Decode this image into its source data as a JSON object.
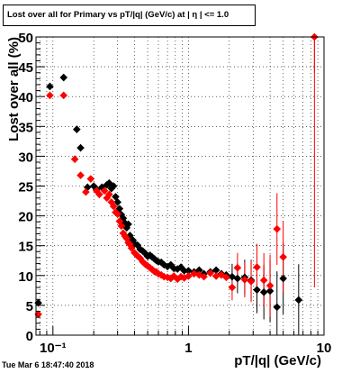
{
  "chart_data": {
    "type": "scatter",
    "title": "Lost over all for Primary vs pT/|q| (GeV/c) at | η | <= 1.0",
    "xlabel": "pT/|q| (GeV/c)",
    "ylabel": "Lost over all (%)",
    "x_scale": "log",
    "xlim": [
      0.075,
      10
    ],
    "ylim": [
      0,
      50
    ],
    "x_tick_labels": [
      "10⁻¹",
      "1",
      "10"
    ],
    "y_tick_labels": [
      "0",
      "5",
      "10",
      "15",
      "20",
      "25",
      "30",
      "35",
      "40",
      "45",
      "50"
    ],
    "grid": true,
    "timestamp": "Tue Mar  6 18:47:40 2018",
    "series": [
      {
        "color": "#000000",
        "marker": "diamond",
        "points": [
          [
            0.078,
            5.4
          ],
          [
            0.095,
            41.7
          ],
          [
            0.12,
            43.2
          ],
          [
            0.15,
            34.5
          ],
          [
            0.16,
            31.4
          ],
          [
            0.18,
            24.8
          ],
          [
            0.2,
            25
          ],
          [
            0.21,
            24.4
          ],
          [
            0.23,
            24.8
          ],
          [
            0.25,
            25.2
          ],
          [
            0.26,
            25.5
          ],
          [
            0.27,
            24.6
          ],
          [
            0.28,
            25
          ],
          [
            0.29,
            23.2
          ],
          [
            0.3,
            22.3
          ],
          [
            0.31,
            21.2
          ],
          [
            0.32,
            20.2
          ],
          [
            0.33,
            19.6
          ],
          [
            0.34,
            18.8
          ],
          [
            0.35,
            18
          ],
          [
            0.36,
            18.6
          ],
          [
            0.37,
            16.7
          ],
          [
            0.38,
            16.1
          ],
          [
            0.39,
            15.9
          ],
          [
            0.4,
            15.3
          ],
          [
            0.42,
            15.1
          ],
          [
            0.44,
            14.4
          ],
          [
            0.46,
            14.1
          ],
          [
            0.48,
            13.7
          ],
          [
            0.5,
            13.2
          ],
          [
            0.52,
            13.4
          ],
          [
            0.54,
            13.1
          ],
          [
            0.56,
            12.8
          ],
          [
            0.58,
            12.5
          ],
          [
            0.6,
            12.3
          ],
          [
            0.63,
            12.2
          ],
          [
            0.66,
            11.8
          ],
          [
            0.7,
            11.5
          ],
          [
            0.74,
            11.8
          ],
          [
            0.78,
            11.2
          ],
          [
            0.83,
            11.1
          ],
          [
            0.88,
            11.4
          ],
          [
            0.93,
            10.8
          ],
          [
            1.0,
            10.8
          ],
          [
            1.1,
            10.6
          ],
          [
            1.2,
            10.9
          ],
          [
            1.3,
            10.3
          ],
          [
            1.45,
            10.6
          ],
          [
            1.6,
            10.9
          ],
          [
            1.75,
            10.3
          ],
          [
            1.9,
            10.1
          ],
          [
            2.1,
            9.8
          ],
          [
            2.3,
            9.5
          ],
          [
            2.6,
            9.7
          ],
          [
            2.9,
            9.2
          ],
          [
            3.2,
            7.6
          ],
          [
            3.6,
            7.2
          ],
          [
            4.0,
            7.4
          ],
          [
            4.5,
            4.7
          ],
          [
            5.0,
            9.5
          ],
          [
            6.5,
            5.9
          ]
        ]
      },
      {
        "color": "#ff0000",
        "marker": "diamond",
        "points": [
          [
            0.078,
            3.5
          ],
          [
            0.095,
            40.2
          ],
          [
            0.12,
            40.2
          ],
          [
            0.145,
            29.5
          ],
          [
            0.16,
            26.8
          ],
          [
            0.175,
            24
          ],
          [
            0.19,
            26.2
          ],
          [
            0.21,
            24.2
          ],
          [
            0.22,
            23.6
          ],
          [
            0.24,
            24.2
          ],
          [
            0.25,
            23
          ],
          [
            0.26,
            23.6
          ],
          [
            0.27,
            22.3
          ],
          [
            0.28,
            21.6
          ],
          [
            0.29,
            20.6
          ],
          [
            0.3,
            20.3
          ],
          [
            0.31,
            19.1
          ],
          [
            0.32,
            18.3
          ],
          [
            0.33,
            17.1
          ],
          [
            0.34,
            16.6
          ],
          [
            0.35,
            16.2
          ],
          [
            0.36,
            15.5
          ],
          [
            0.37,
            15.2
          ],
          [
            0.38,
            14.6
          ],
          [
            0.4,
            13.8
          ],
          [
            0.42,
            13.3
          ],
          [
            0.44,
            12.9
          ],
          [
            0.46,
            12.3
          ],
          [
            0.48,
            11.9
          ],
          [
            0.5,
            11.6
          ],
          [
            0.52,
            11.3
          ],
          [
            0.54,
            11
          ],
          [
            0.56,
            10.7
          ],
          [
            0.58,
            10.6
          ],
          [
            0.6,
            10.3
          ],
          [
            0.63,
            10.1
          ],
          [
            0.66,
            9.8
          ],
          [
            0.7,
            9.7
          ],
          [
            0.74,
            9.5
          ],
          [
            0.78,
            9.9
          ],
          [
            0.83,
            9.4
          ],
          [
            0.88,
            9.8
          ],
          [
            0.93,
            9.6
          ],
          [
            1.0,
            9.9
          ],
          [
            1.1,
            10.3
          ],
          [
            1.2,
            10.1
          ],
          [
            1.3,
            9.8
          ],
          [
            1.45,
            10.4
          ],
          [
            1.6,
            9.9
          ],
          [
            1.75,
            10.1
          ],
          [
            1.9,
            9.7
          ],
          [
            2.1,
            8
          ],
          [
            2.3,
            11.3
          ],
          [
            2.6,
            9.3
          ],
          [
            2.9,
            9.0
          ],
          [
            3.2,
            11.4
          ],
          [
            3.6,
            9.2
          ],
          [
            4.0,
            8.3
          ],
          [
            4.5,
            17.8
          ],
          [
            5.0,
            13.1
          ],
          [
            8.5,
            50
          ]
        ]
      }
    ]
  }
}
